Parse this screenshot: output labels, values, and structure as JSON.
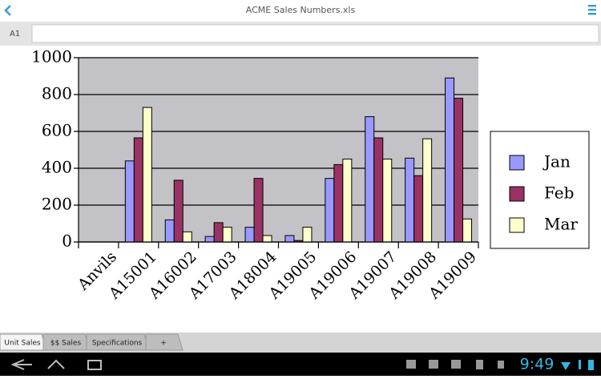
{
  "header": {
    "title": "ACME Sales Numbers.xls"
  },
  "formula_bar": {
    "cell": "A1"
  },
  "chart_data": {
    "type": "bar",
    "categories": [
      "Anvils",
      "A15001",
      "A16002",
      "A17003",
      "A18004",
      "A19005",
      "A19006",
      "A19007",
      "A19008",
      "A19009"
    ],
    "series": [
      {
        "name": "Jan",
        "color": "#9999ff",
        "values": [
          0,
          440,
          120,
          30,
          80,
          35,
          345,
          680,
          455,
          890
        ]
      },
      {
        "name": "Feb",
        "color": "#993366",
        "values": [
          0,
          565,
          335,
          105,
          345,
          8,
          420,
          565,
          360,
          780
        ]
      },
      {
        "name": "Mar",
        "color": "#ffffcc",
        "values": [
          0,
          730,
          55,
          80,
          35,
          80,
          450,
          450,
          560,
          125
        ]
      }
    ],
    "ylim": [
      0,
      1000
    ],
    "yticks": [
      0,
      200,
      400,
      600,
      800,
      1000
    ],
    "grid": true,
    "legend": "right"
  },
  "tabs": [
    "Unit Sales",
    "$$ Sales",
    "Specifications",
    "+"
  ],
  "status_bar": {
    "time": "9:49"
  }
}
